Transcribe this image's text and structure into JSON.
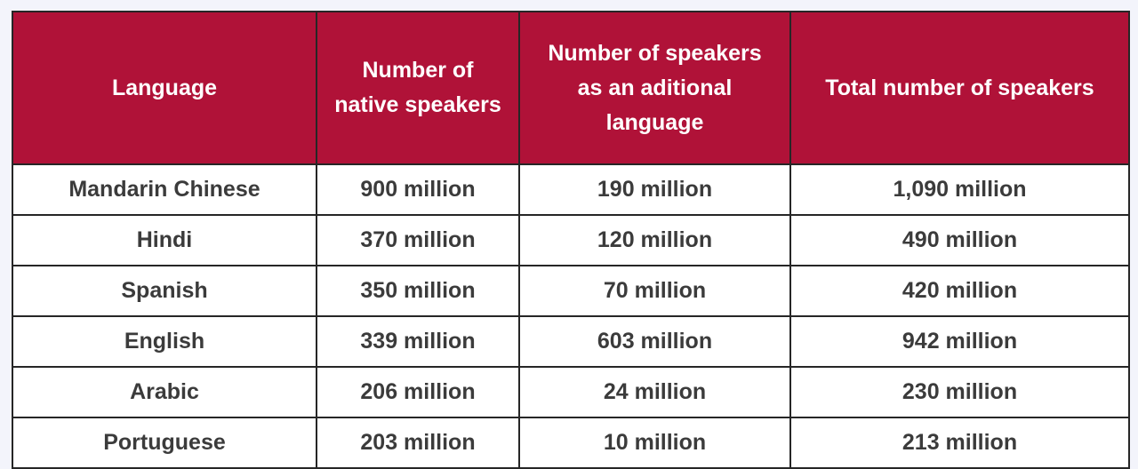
{
  "chart_data": {
    "type": "table",
    "columns": [
      "Language",
      "Number of\nnative speakers",
      "Number of speakers\nas an aditional\nlanguage",
      "Total number of speakers"
    ],
    "rows": [
      [
        "Mandarin Chinese",
        "900 million",
        "190 million",
        "1,090 million"
      ],
      [
        "Hindi",
        "370 million",
        "120 million",
        "490 million"
      ],
      [
        "Spanish",
        "350 million",
        "70 million",
        "420 million"
      ],
      [
        "English",
        "339 million",
        "603 million",
        "942 million"
      ],
      [
        "Arabic",
        "206 million",
        "24 million",
        "230 million"
      ],
      [
        "Portuguese",
        "203 million",
        "10 million",
        "213 million"
      ]
    ]
  },
  "colors": {
    "header_background": "#b01238",
    "header_text": "#ffffff",
    "cell_background": "#ffffff",
    "cell_text": "#3b3b3b",
    "border": "#262626"
  }
}
